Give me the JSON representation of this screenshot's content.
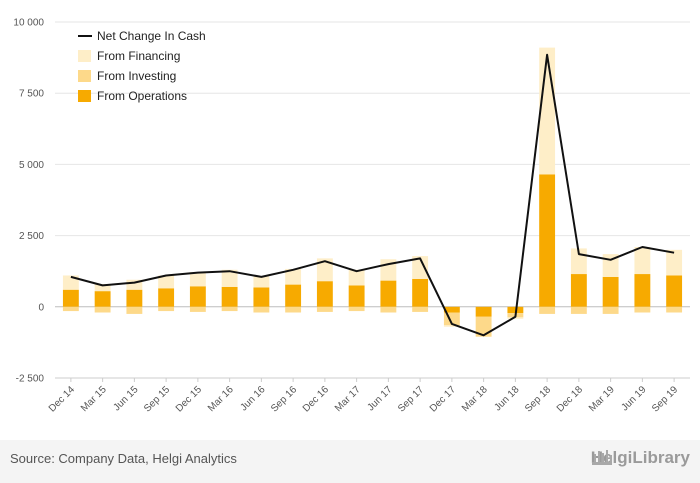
{
  "chart_data": {
    "type": "bar",
    "stacked": true,
    "categories": [
      "Dec 14",
      "Mar 15",
      "Jun 15",
      "Sep 15",
      "Dec 15",
      "Mar 16",
      "Jun 16",
      "Sep 16",
      "Dec 16",
      "Mar 17",
      "Jun 17",
      "Sep 17",
      "Dec 17",
      "Mar 18",
      "Jun 18",
      "Sep 18",
      "Dec 18",
      "Mar 19",
      "Jun 19",
      "Sep 19"
    ],
    "series": [
      {
        "name": "From Operations",
        "kind": "bar",
        "color": "#f7aa00",
        "values": [
          600,
          550,
          600,
          650,
          720,
          700,
          680,
          780,
          900,
          750,
          920,
          980,
          -200,
          -350,
          -220,
          4650,
          1150,
          1050,
          1150,
          1100
        ]
      },
      {
        "name": "From Investing",
        "kind": "bar",
        "color": "#fdd98a",
        "values": [
          -150,
          -200,
          -250,
          -150,
          -180,
          -150,
          -200,
          -200,
          -180,
          -150,
          -200,
          -180,
          -450,
          -700,
          -150,
          -250,
          -250,
          -250,
          -200,
          -200
        ]
      },
      {
        "name": "From Financing",
        "kind": "bar",
        "color": "#feeec8",
        "values": [
          500,
          250,
          350,
          450,
          500,
          600,
          400,
          550,
          800,
          550,
          750,
          800,
          -50,
          0,
          -50,
          4450,
          900,
          800,
          950,
          900
        ]
      },
      {
        "name": "Net Change In Cash",
        "kind": "line",
        "color": "#111111",
        "values": [
          1050,
          750,
          850,
          1100,
          1200,
          1250,
          1050,
          1300,
          1600,
          1250,
          1500,
          1700,
          -600,
          -1000,
          -350,
          8850,
          1850,
          1650,
          2100,
          1900
        ]
      }
    ],
    "yticks": [
      -2500,
      0,
      2500,
      5000,
      7500,
      10000
    ],
    "ytick_labels": [
      "-2 500",
      "0",
      "2 500",
      "5 000",
      "7 500",
      "10 000"
    ],
    "ylim": [
      -2500,
      10000
    ],
    "grid": true,
    "legend_position": "top-left",
    "legend_order": [
      "Net Change In Cash",
      "From Financing",
      "From Investing",
      "From Operations"
    ]
  },
  "footer": {
    "source": "Source: Company Data, Helgi Analytics",
    "logo_text": "HelgiLibrary"
  }
}
